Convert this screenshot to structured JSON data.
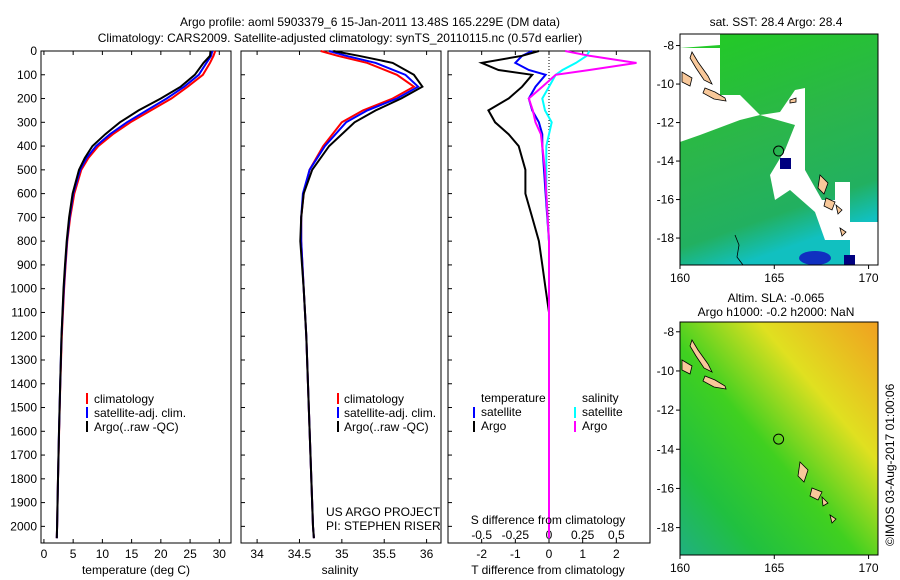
{
  "title": {
    "line1": "Argo profile: aoml 5903379_6 15-Jan-2011 13.48S 165.229E (DM data)",
    "line2": "Climatology: CARS2009. Satellite-adjusted climatology: synTS_20110115.nc (0.57d earlier)"
  },
  "colors": {
    "climatology": "#ff0000",
    "satellite": "#0000ff",
    "argo": "#000000",
    "sal_satellite": "#00ffff",
    "sal_argo": "#ff00ff"
  },
  "credit": "©IMOS 03-Aug-2017 01:00:06",
  "project": {
    "line1": "US ARGO PROJECT",
    "line2": "PI: STEPHEN RISER"
  },
  "chart_data": [
    {
      "type": "line",
      "id": "temperature",
      "xlabel": "temperature (deg C)",
      "ylabel": "",
      "xlim": [
        -0.5,
        32
      ],
      "ylim": [
        2070,
        0
      ],
      "xticks": [
        0,
        5,
        10,
        15,
        20,
        25,
        30
      ],
      "yticks": [
        0,
        100,
        200,
        300,
        400,
        500,
        600,
        700,
        800,
        900,
        1000,
        1100,
        1200,
        1300,
        1400,
        1500,
        1600,
        1700,
        1800,
        1900,
        2000
      ],
      "legend": [
        "climatology",
        "satellite-adj. clim.",
        "Argo(..raw -QC)"
      ],
      "depth": [
        0,
        20,
        50,
        100,
        150,
        200,
        250,
        300,
        350,
        400,
        450,
        500,
        600,
        700,
        800,
        900,
        1000,
        1200,
        1400,
        1600,
        1800,
        2000,
        2050
      ],
      "series": [
        {
          "name": "climatology",
          "values": [
            29.3,
            29,
            28.4,
            27.2,
            24.6,
            21.8,
            18.3,
            14.8,
            11.8,
            9.3,
            7.6,
            6.4,
            5.2,
            4.5,
            4.0,
            3.7,
            3.45,
            3.05,
            2.8,
            2.6,
            2.4,
            2.25,
            2.2
          ]
        },
        {
          "name": "satellite-adj. clim.",
          "values": [
            28.8,
            28.6,
            27.8,
            26.5,
            24.0,
            21.0,
            17.6,
            14.2,
            11.3,
            8.9,
            7.3,
            6.2,
            5.0,
            4.4,
            3.95,
            3.65,
            3.4,
            3.0,
            2.78,
            2.58,
            2.4,
            2.25,
            2.2
          ]
        },
        {
          "name": "Argo(..raw -QC)",
          "values": [
            28.5,
            28.4,
            27.3,
            25.8,
            23.4,
            20.0,
            16.2,
            13.0,
            10.5,
            8.3,
            7.0,
            6.0,
            4.9,
            4.3,
            3.9,
            3.6,
            3.35,
            3.0,
            2.78,
            2.58,
            2.4,
            2.25,
            2.2
          ]
        }
      ]
    },
    {
      "type": "line",
      "id": "salinity",
      "xlabel": "salinity",
      "xlim": [
        33.81,
        36.17
      ],
      "ylim": [
        2070,
        0
      ],
      "xticks": [
        34,
        34.5,
        35,
        35.5,
        36
      ],
      "legend": [
        "climatology",
        "satellite-adj. clim.",
        "Argo(..raw -QC)"
      ],
      "depth": [
        0,
        20,
        50,
        100,
        150,
        200,
        250,
        300,
        400,
        500,
        600,
        700,
        800,
        1000,
        1200,
        1500,
        2000,
        2050
      ],
      "series": [
        {
          "name": "climatology",
          "values": [
            34.75,
            34.95,
            35.3,
            35.65,
            35.85,
            35.6,
            35.25,
            35.0,
            34.78,
            34.62,
            34.55,
            34.52,
            34.52,
            34.55,
            34.58,
            34.61,
            34.66,
            34.67
          ]
        },
        {
          "name": "satellite-adj. clim.",
          "values": [
            34.85,
            35.05,
            35.4,
            35.75,
            35.9,
            35.65,
            35.3,
            35.05,
            34.8,
            34.62,
            34.54,
            34.52,
            34.52,
            34.55,
            34.58,
            34.61,
            34.66,
            34.67
          ]
        },
        {
          "name": "Argo(..raw -QC)",
          "values": [
            34.9,
            35.2,
            35.6,
            35.85,
            35.95,
            35.7,
            35.4,
            35.15,
            34.85,
            34.65,
            34.55,
            34.52,
            34.51,
            34.55,
            34.58,
            34.61,
            34.66,
            34.67
          ]
        }
      ]
    },
    {
      "type": "line",
      "id": "difference",
      "xlabel": "T difference from climatology",
      "x2label": "S difference from climatology",
      "xlim": [
        -3,
        3
      ],
      "x2lim": [
        -0.75,
        0.75
      ],
      "ylim": [
        2070,
        0
      ],
      "xticks": [
        -2,
        -1,
        0,
        1,
        2
      ],
      "x2ticks": [
        -0.5,
        -0.25,
        0,
        0.25,
        0.5
      ],
      "legend_groups": [
        {
          "title": "temperature",
          "items": [
            "satellite",
            "Argo"
          ]
        },
        {
          "title": "salinity",
          "items": [
            "satellite",
            "Argo"
          ]
        }
      ],
      "depth": [
        0,
        20,
        50,
        80,
        100,
        150,
        200,
        250,
        300,
        350,
        400,
        500,
        600,
        700,
        800,
        900,
        1000,
        1100,
        1500,
        2050
      ],
      "series": [
        {
          "name": "temperature satellite",
          "values": [
            -0.5,
            -0.8,
            -1.0,
            -0.6,
            -0.1,
            -0.4,
            -0.6,
            -0.5,
            -0.3,
            -0.2,
            -0.2,
            -0.15,
            -0.1,
            -0.05,
            0,
            0,
            0,
            0,
            0,
            0
          ]
        },
        {
          "name": "temperature Argo",
          "values": [
            -0.3,
            -0.8,
            -2.0,
            -1.5,
            -0.5,
            -0.8,
            -1.2,
            -1.8,
            -1.6,
            -1.2,
            -0.9,
            -0.7,
            -0.7,
            -0.5,
            -0.3,
            -0.2,
            -0.1,
            0,
            0,
            0
          ]
        },
        {
          "name": "salinity satellite",
          "values": [
            0.3,
            0.28,
            0.2,
            0.1,
            0.05,
            0.0,
            -0.05,
            -0.03,
            0.02,
            0.0,
            -0.02,
            -0.02,
            -0.02,
            -0.01,
            0,
            0,
            0,
            0,
            0,
            0
          ]
        },
        {
          "name": "salinity Argo",
          "values": [
            0.12,
            0.3,
            0.65,
            0.3,
            0.05,
            -0.05,
            -0.15,
            -0.12,
            -0.1,
            -0.06,
            -0.05,
            -0.03,
            -0.02,
            -0.01,
            0,
            0,
            0,
            0,
            0,
            0
          ]
        }
      ]
    },
    {
      "type": "heatmap",
      "id": "sst_map",
      "title": "sat. SST: 28.4 Argo: 28.4",
      "xlim": [
        160,
        170.5
      ],
      "ylim": [
        -19.4,
        -7.4
      ],
      "xticks": [
        160,
        165,
        170
      ],
      "yticks": [
        -8,
        -10,
        -12,
        -14,
        -16,
        -18
      ],
      "argo_position": {
        "lon": 165.229,
        "lat": -13.48
      }
    },
    {
      "type": "heatmap",
      "id": "sla_map",
      "title": "Altim. SLA: -0.065",
      "subtitle": "Argo h1000: -0.2 h2000: NaN",
      "xlim": [
        160,
        170.5
      ],
      "ylim": [
        -19.4,
        -7.5
      ],
      "xticks": [
        160,
        165,
        170
      ],
      "yticks": [
        -8,
        -10,
        -12,
        -14,
        -16,
        -18
      ],
      "argo_position": {
        "lon": 165.229,
        "lat": -13.48
      }
    }
  ]
}
